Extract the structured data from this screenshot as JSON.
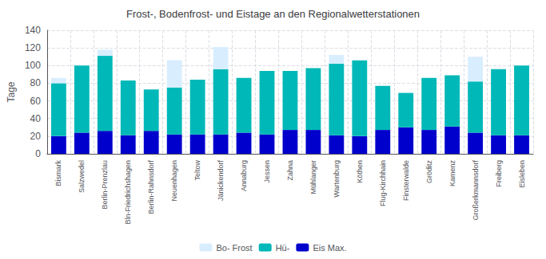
{
  "chart_data": {
    "type": "bar",
    "title": "Frost-, Bodenfrost- und Eistage an den Regionalwetterstationen",
    "ylabel": "Tage",
    "categories": [
      "Bismark",
      "Salzwedel",
      "Berlin-Prenzlau",
      "Bln-Friedrichshagen",
      "Berlin-Rahnsdorf",
      "Neuenhagen",
      "Teltow",
      "Jänickendorf",
      "Annaburg",
      "Jessen",
      "Zahna",
      "Mühlanger",
      "Wartenburg",
      "Köthen",
      "Flug-Kirchhain",
      "Finsterwalde",
      "Gröditz",
      "Kamenz",
      "Großerkmannsdorf",
      "Freiberg",
      "Eisleben"
    ],
    "series": [
      {
        "name": "Eis Max.",
        "color": "#0000cc",
        "values": [
          20,
          24,
          26,
          21,
          26,
          22,
          22,
          22,
          24,
          22,
          27,
          27,
          21,
          20,
          27,
          30,
          27,
          31,
          24,
          21,
          21
        ]
      },
      {
        "name": "Hü-",
        "color": "#00b8b8",
        "values": [
          60,
          76,
          85,
          62,
          47,
          53,
          62,
          74,
          62,
          72,
          67,
          70,
          81,
          86,
          50,
          39,
          59,
          58,
          58,
          75,
          79
        ]
      },
      {
        "name": "Bo- Frost",
        "color": "#d8eeff",
        "values": [
          6,
          0,
          7,
          0,
          0,
          31,
          0,
          25,
          0,
          0,
          0,
          0,
          10,
          0,
          0,
          0,
          0,
          0,
          28,
          0,
          0
        ]
      }
    ],
    "stacked": true,
    "ylim": [
      0,
      140
    ],
    "yticks": [
      0,
      20,
      40,
      60,
      80,
      100,
      120,
      140
    ],
    "grid": true,
    "legend": "bottom"
  }
}
